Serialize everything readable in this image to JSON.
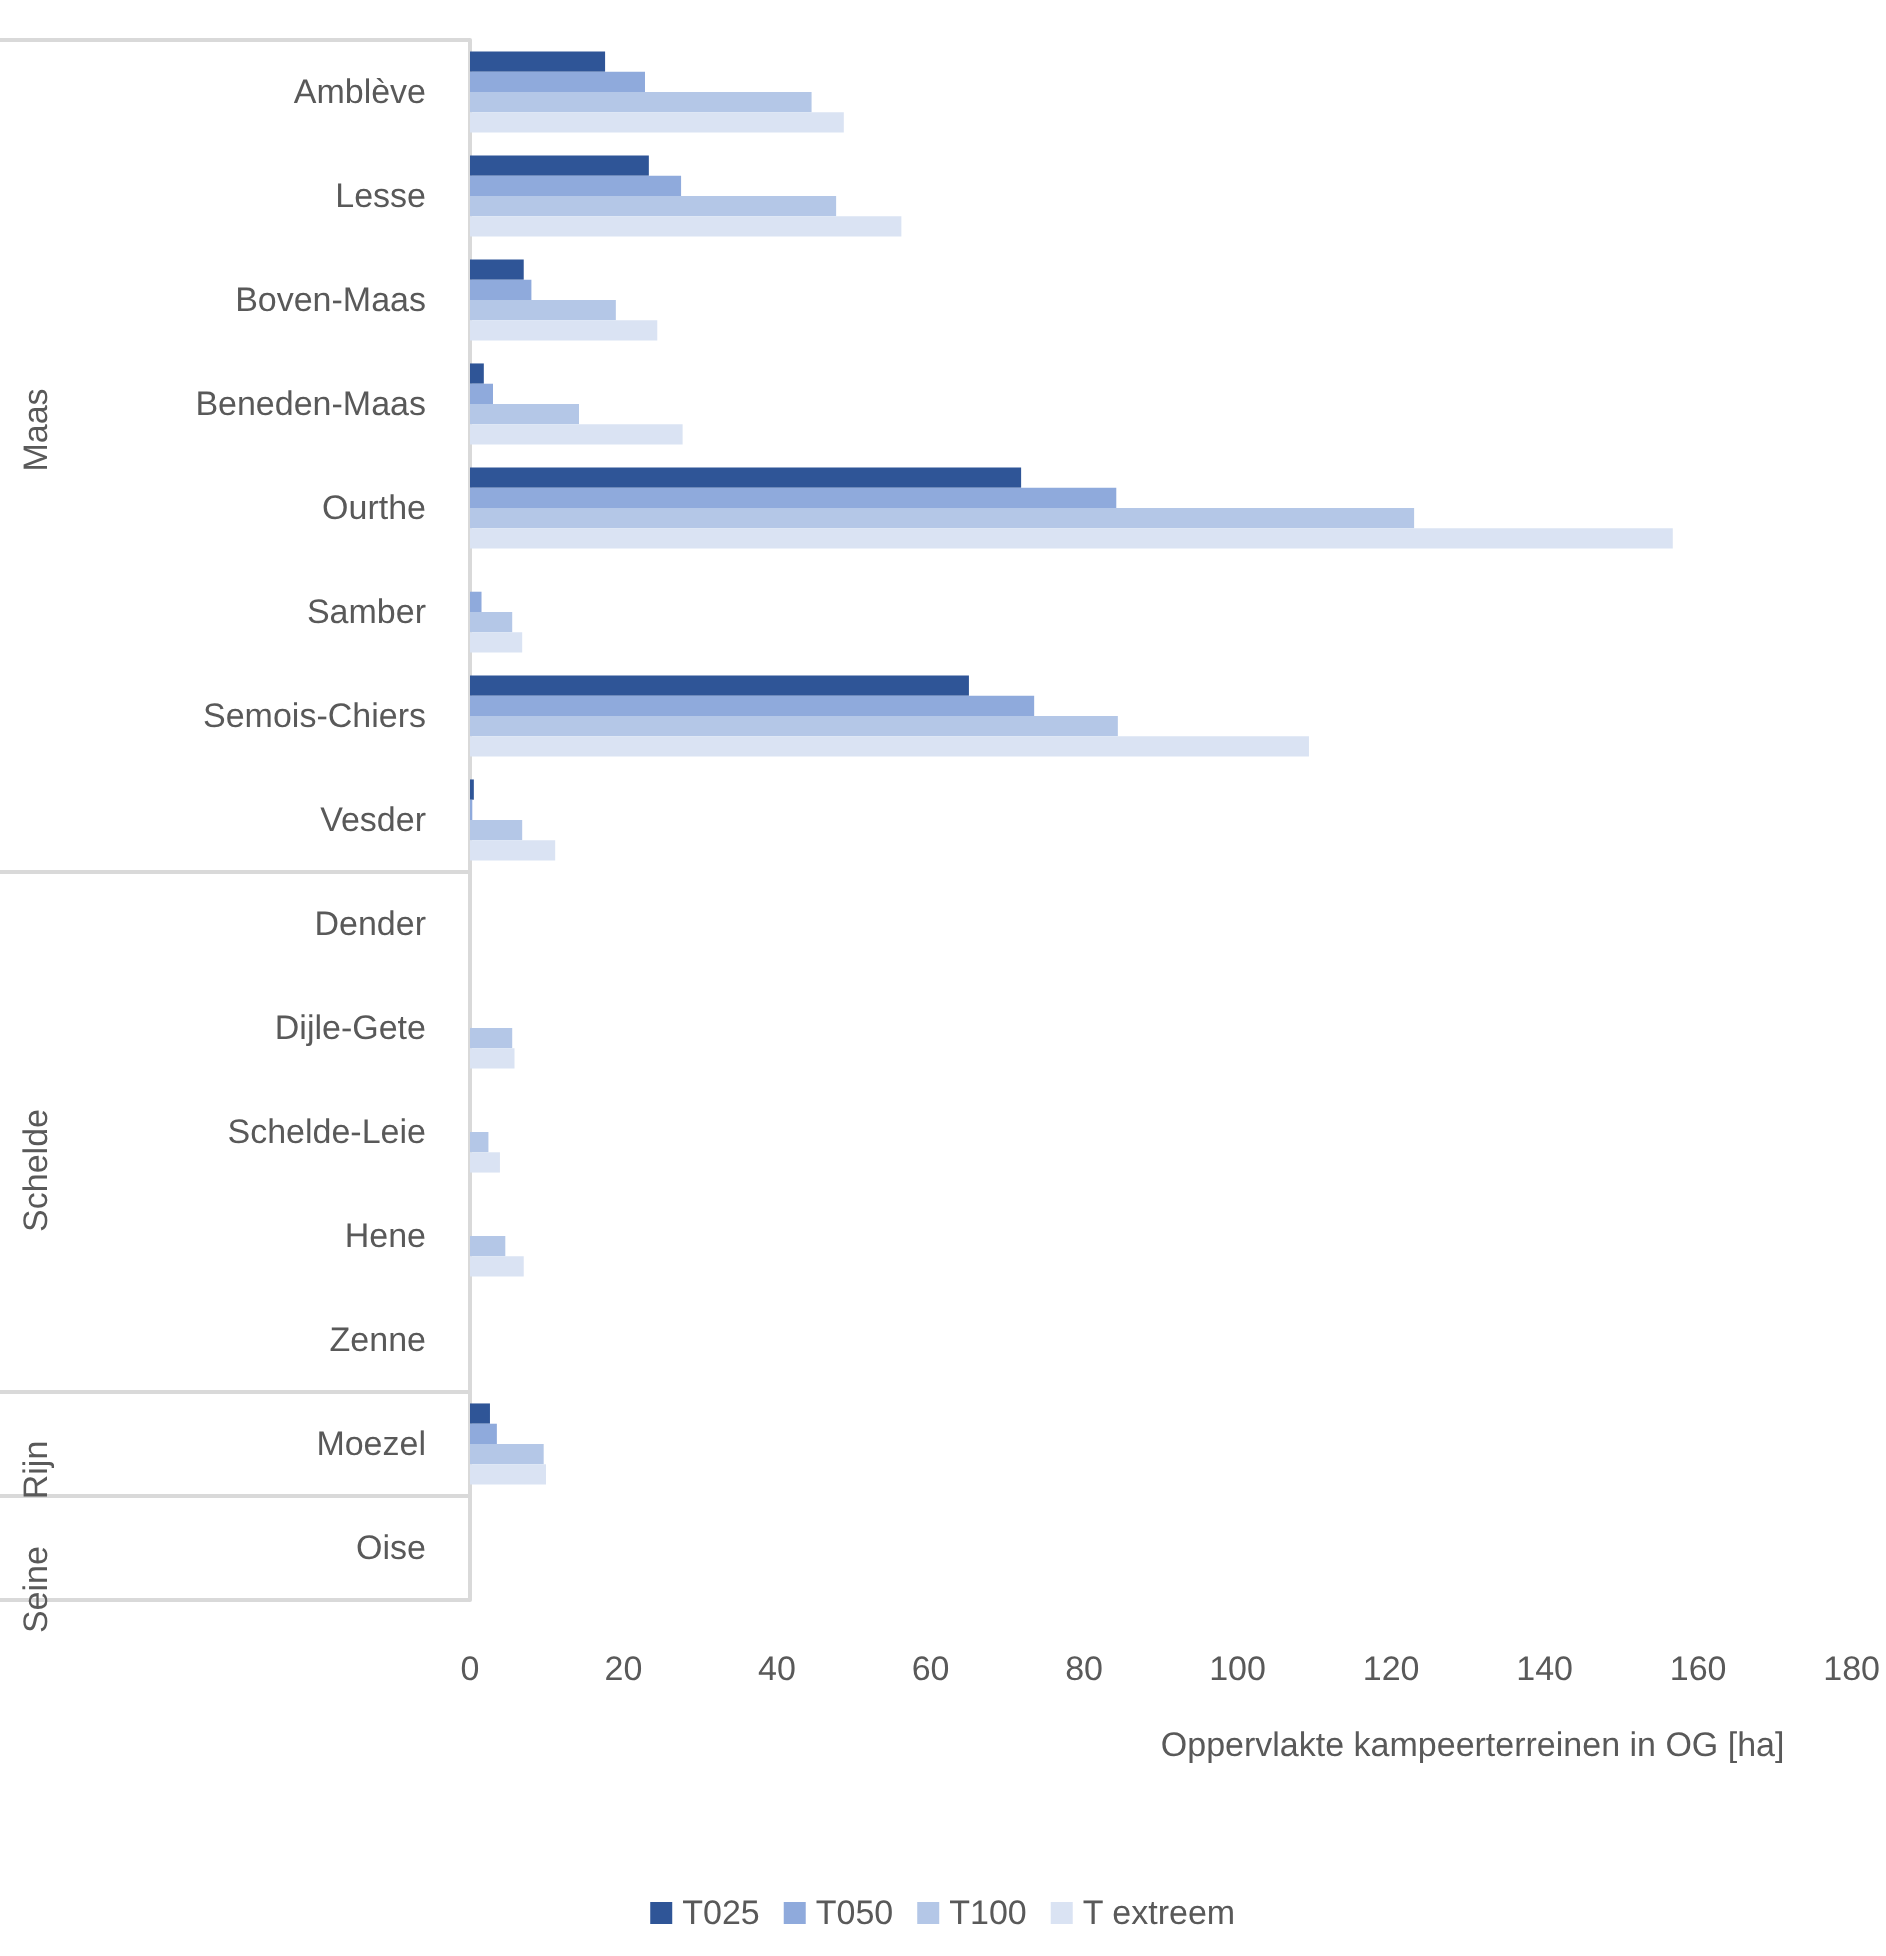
{
  "chart_data": {
    "type": "bar",
    "orientation": "horizontal",
    "xlabel": "Oppervlakte kampeerterreinen in OG [ha]",
    "categories": [
      "Amblève",
      "Lesse",
      "Boven-Maas",
      "Beneden-Maas",
      "Ourthe",
      "Samber",
      "Semois-Chiers",
      "Vesder",
      "Dender",
      "Dijle-Gete",
      "Schelde-Leie",
      "Hene",
      "Zenne",
      "Moezel",
      "Oise"
    ],
    "series": [
      {
        "name": "T025",
        "color": "#2f5597",
        "values": [
          17.6,
          23.3,
          7,
          1.8,
          71.8,
          0,
          65,
          0.5,
          0,
          0,
          0,
          0,
          0,
          2.6,
          0
        ]
      },
      {
        "name": "T050",
        "color": "#8faadc",
        "values": [
          22.8,
          27.5,
          8,
          3,
          84.2,
          1.5,
          73.5,
          0.3,
          0,
          0,
          0,
          0,
          0,
          3.5,
          0
        ]
      },
      {
        "name": "T100",
        "color": "#b4c7e7",
        "values": [
          44.5,
          47.7,
          19,
          14.2,
          123,
          5.5,
          84.4,
          6.8,
          0,
          5.5,
          2.4,
          4.6,
          0,
          9.6,
          0
        ]
      },
      {
        "name": "T extreem",
        "color": "#dae3f3",
        "values": [
          48.7,
          56.2,
          24.4,
          27.7,
          156.7,
          6.8,
          109.3,
          11.1,
          0,
          5.8,
          3.9,
          7,
          0,
          9.9,
          0
        ]
      }
    ],
    "xlim": [
      0,
      180
    ],
    "xticks": [
      0,
      20,
      40,
      60,
      80,
      100,
      120,
      140,
      160,
      180
    ],
    "annotations": [
      "Maas",
      "Schelde",
      "Rijn",
      "Seine"
    ],
    "legend": "bottom"
  }
}
